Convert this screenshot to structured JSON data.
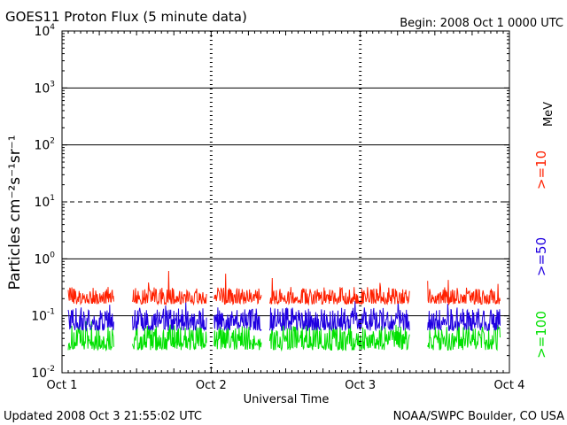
{
  "chart_data": {
    "type": "line",
    "title": "GOES11 Proton Flux (5 minute data)",
    "begin_label": "Begin: 2008 Oct 1 0000 UTC",
    "xlabel": "Universal Time",
    "ylabel": "Particles cm⁻²s⁻¹sr⁻¹",
    "y_scale": "log",
    "ylim": [
      0.01,
      10000
    ],
    "xlim_days": [
      0,
      3
    ],
    "x_ticks": [
      {
        "day": 0,
        "label": "Oct 1"
      },
      {
        "day": 1,
        "label": "Oct 2"
      },
      {
        "day": 2,
        "label": "Oct 3"
      },
      {
        "day": 3,
        "label": "Oct 4"
      }
    ],
    "y_ticks": [
      {
        "value": 10000,
        "base": "10",
        "exp": "4"
      },
      {
        "value": 1000,
        "base": "10",
        "exp": "3"
      },
      {
        "value": 100,
        "base": "10",
        "exp": "2"
      },
      {
        "value": 10,
        "base": "10",
        "exp": "1"
      },
      {
        "value": 1,
        "base": "10",
        "exp": "0"
      },
      {
        "value": 0.1,
        "base": "10",
        "exp": "-1"
      },
      {
        "value": 0.01,
        "base": "10",
        "exp": "-2"
      }
    ],
    "gridlines": [
      {
        "value": 1000,
        "style": "solid"
      },
      {
        "value": 100,
        "style": "solid"
      },
      {
        "value": 10,
        "style": "dashed"
      },
      {
        "value": 1,
        "style": "solid"
      },
      {
        "value": 0.1,
        "style": "solid"
      }
    ],
    "data_gaps_days": [
      [
        0.0,
        0.04
      ],
      [
        0.35,
        0.47
      ],
      [
        0.97,
        1.02
      ],
      [
        1.34,
        1.39
      ],
      [
        2.33,
        2.45
      ]
    ],
    "data_end_day": 2.94,
    "series": [
      {
        "name": ">=10 MeV",
        "legend_label": ">=10",
        "unit": "MeV",
        "color": "#ff2000",
        "typical_low": 0.16,
        "typical_high": 0.32,
        "peak": 0.8
      },
      {
        "name": ">=50 MeV",
        "legend_label": ">=50",
        "color": "#2000e0",
        "typical_low": 0.055,
        "typical_high": 0.14,
        "peak": 0.18
      },
      {
        "name": ">=100 MeV",
        "legend_label": ">=100",
        "color": "#00e000",
        "typical_low": 0.025,
        "typical_high": 0.07,
        "peak": 0.08
      }
    ]
  },
  "footer": {
    "updated": "Updated 2008 Oct  3 21:55:02 UTC",
    "credit": "NOAA/SWPC Boulder, CO USA"
  }
}
